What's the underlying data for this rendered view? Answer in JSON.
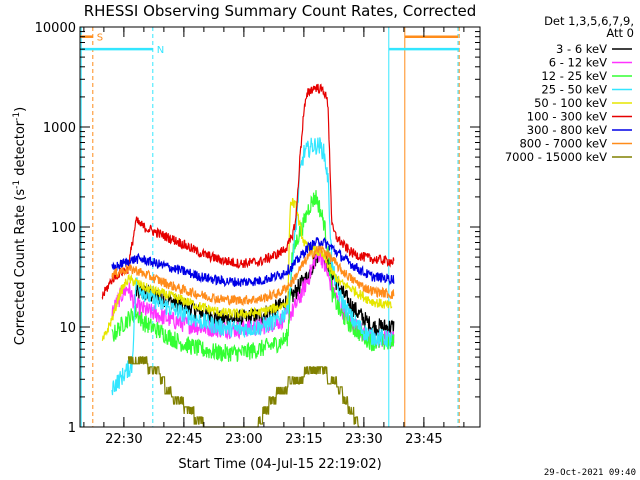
{
  "chart_data": {
    "type": "line",
    "title": "RHESSI Observing Summary Count Rates, Corrected",
    "xlabel": "Start Time (04-Jul-15 22:19:02)",
    "ylabel": "Corrected Count Rate (s",
    "ylabel_sup": "-1",
    "ylabel_tail": " detector",
    "ylabel_tail_sup": "-1",
    "ylabel_close": ")",
    "y_scale": "log",
    "xlim_minutes": [
      0,
      100
    ],
    "ylim": [
      1,
      10000
    ],
    "x_ticks": [
      {
        "label": "22:30",
        "min": 10.97
      },
      {
        "label": "22:45",
        "min": 25.97
      },
      {
        "label": "23:00",
        "min": 40.97
      },
      {
        "label": "23:15",
        "min": 55.97
      },
      {
        "label": "23:30",
        "min": 70.97
      },
      {
        "label": "23:45",
        "min": 85.97
      }
    ],
    "y_ticks": [
      {
        "label": "1",
        "value": 1
      },
      {
        "label": "10",
        "value": 10
      },
      {
        "label": "100",
        "value": 100
      },
      {
        "label": "1000",
        "value": 1000
      },
      {
        "label": "10000",
        "value": 10000
      }
    ],
    "legend_header": [
      "Det 1,3,5,6,7,9,",
      "Att 0"
    ],
    "legend_position": "right",
    "timestamp": "29-Oct-2021 09:40",
    "markers": [
      {
        "label": "S",
        "color": "#ff8c1a",
        "y": 8000
      },
      {
        "label": "N",
        "color": "#33e6ff",
        "y": 6000
      }
    ],
    "series": [
      {
        "name": "3 - 6 keV",
        "color": "#000000",
        "points": [
          [
            14,
            22
          ],
          [
            16,
            22
          ],
          [
            20,
            20
          ],
          [
            25,
            17
          ],
          [
            30,
            14
          ],
          [
            35,
            12
          ],
          [
            40,
            12
          ],
          [
            45,
            13
          ],
          [
            50,
            16
          ],
          [
            53,
            20
          ],
          [
            55,
            26
          ],
          [
            57,
            32
          ],
          [
            59,
            50
          ],
          [
            60,
            60
          ],
          [
            61,
            48
          ],
          [
            63,
            34
          ],
          [
            65,
            24
          ],
          [
            68,
            16
          ],
          [
            71,
            12
          ],
          [
            72,
            11
          ],
          [
            73,
            10
          ],
          [
            78.5,
            10
          ]
        ]
      },
      {
        "name": "6 - 12 keV",
        "color": "#ff33ff",
        "points": [
          [
            8,
            14
          ],
          [
            10,
            20
          ],
          [
            12,
            25
          ],
          [
            14,
            16
          ],
          [
            16,
            15
          ],
          [
            20,
            13
          ],
          [
            25,
            11
          ],
          [
            30,
            10
          ],
          [
            35,
            9.5
          ],
          [
            40,
            9.5
          ],
          [
            45,
            10
          ],
          [
            50,
            11.5
          ],
          [
            53,
            14
          ],
          [
            55,
            20
          ],
          [
            57,
            30
          ],
          [
            59,
            50
          ],
          [
            60,
            55
          ],
          [
            61,
            42
          ],
          [
            63,
            25
          ],
          [
            65,
            16
          ],
          [
            68,
            11
          ],
          [
            71,
            8.5
          ],
          [
            73,
            7.5
          ],
          [
            78.5,
            7.5
          ]
        ]
      },
      {
        "name": "12 - 25 keV",
        "color": "#33ff33",
        "points": [
          [
            8,
            8
          ],
          [
            10,
            10
          ],
          [
            12,
            12
          ],
          [
            14,
            14
          ],
          [
            16,
            11
          ],
          [
            20,
            9
          ],
          [
            25,
            7
          ],
          [
            30,
            6
          ],
          [
            35,
            5.5
          ],
          [
            40,
            5.5
          ],
          [
            45,
            6
          ],
          [
            50,
            7
          ],
          [
            52,
            8
          ],
          [
            53,
            50
          ],
          [
            54,
            70
          ],
          [
            55,
            90
          ],
          [
            56,
            110
          ],
          [
            57,
            150
          ],
          [
            58,
            180
          ],
          [
            59,
            200
          ],
          [
            60,
            150
          ],
          [
            61,
            110
          ],
          [
            62,
            60
          ],
          [
            63,
            22
          ],
          [
            65,
            14
          ],
          [
            68,
            10
          ],
          [
            71,
            8
          ],
          [
            73,
            7
          ],
          [
            78.5,
            7
          ]
        ]
      },
      {
        "name": "25 - 50 keV",
        "color": "#33e6ff",
        "points": [
          [
            8,
            2.5
          ],
          [
            10,
            3
          ],
          [
            12,
            3.8
          ],
          [
            13,
            4
          ],
          [
            14,
            28
          ],
          [
            16,
            22
          ],
          [
            20,
            17
          ],
          [
            25,
            14
          ],
          [
            30,
            11.5
          ],
          [
            35,
            10
          ],
          [
            40,
            9.5
          ],
          [
            45,
            10
          ],
          [
            50,
            12
          ],
          [
            52,
            16
          ],
          [
            53,
            40
          ],
          [
            54,
            100
          ],
          [
            55,
            350
          ],
          [
            56,
            550
          ],
          [
            58,
            650
          ],
          [
            60,
            650
          ],
          [
            61,
            550
          ],
          [
            62,
            300
          ],
          [
            63,
            40
          ],
          [
            65,
            20
          ],
          [
            68,
            12
          ],
          [
            71,
            9
          ],
          [
            73,
            8
          ],
          [
            78,
            7.5
          ]
        ]
      },
      {
        "name": "50 - 100 keV",
        "color": "#e6e600",
        "points": [
          [
            5.5,
            7
          ],
          [
            8,
            12
          ],
          [
            10,
            22
          ],
          [
            12,
            30
          ],
          [
            14,
            28
          ],
          [
            16,
            25
          ],
          [
            20,
            22
          ],
          [
            25,
            19
          ],
          [
            30,
            16
          ],
          [
            35,
            14
          ],
          [
            40,
            13.5
          ],
          [
            45,
            14
          ],
          [
            50,
            16
          ],
          [
            52,
            18
          ],
          [
            52.5,
            160
          ],
          [
            53,
            180
          ],
          [
            54,
            160
          ],
          [
            55,
            100
          ],
          [
            56,
            70
          ],
          [
            57,
            60
          ],
          [
            59,
            58
          ],
          [
            60,
            55
          ],
          [
            61,
            50
          ],
          [
            62,
            42
          ],
          [
            63,
            35
          ],
          [
            65,
            28
          ],
          [
            68,
            24
          ],
          [
            71,
            20
          ],
          [
            73,
            18
          ],
          [
            78,
            16
          ]
        ]
      },
      {
        "name": "100 - 300 keV",
        "color": "#e60000",
        "points": [
          [
            5.5,
            20
          ],
          [
            8,
            30
          ],
          [
            10,
            35
          ],
          [
            12,
            38
          ],
          [
            14,
            115
          ],
          [
            16,
            100
          ],
          [
            20,
            85
          ],
          [
            25,
            70
          ],
          [
            30,
            55
          ],
          [
            35,
            47
          ],
          [
            40,
            43
          ],
          [
            45,
            45
          ],
          [
            50,
            55
          ],
          [
            52,
            65
          ],
          [
            53,
            80
          ],
          [
            54,
            120
          ],
          [
            55,
            500
          ],
          [
            56,
            1500
          ],
          [
            57,
            2200
          ],
          [
            58,
            2400
          ],
          [
            59,
            2500
          ],
          [
            60,
            2400
          ],
          [
            61,
            2300
          ],
          [
            62,
            1700
          ],
          [
            62.5,
            400
          ],
          [
            63,
            100
          ],
          [
            64,
            80
          ],
          [
            66,
            65
          ],
          [
            68,
            55
          ],
          [
            71,
            50
          ],
          [
            73,
            48
          ],
          [
            78.5,
            45
          ]
        ]
      },
      {
        "name": "300 - 800 keV",
        "color": "#0000e6",
        "points": [
          [
            8,
            38
          ],
          [
            10,
            42
          ],
          [
            12,
            45
          ],
          [
            14,
            48
          ],
          [
            16,
            47
          ],
          [
            20,
            42
          ],
          [
            25,
            37
          ],
          [
            30,
            32
          ],
          [
            35,
            29
          ],
          [
            40,
            28
          ],
          [
            45,
            29
          ],
          [
            50,
            33
          ],
          [
            53,
            40
          ],
          [
            55,
            50
          ],
          [
            57,
            62
          ],
          [
            59,
            70
          ],
          [
            60,
            72
          ],
          [
            61,
            70
          ],
          [
            63,
            62
          ],
          [
            65,
            52
          ],
          [
            68,
            42
          ],
          [
            71,
            35
          ],
          [
            73,
            32
          ],
          [
            78.5,
            30
          ]
        ]
      },
      {
        "name": "800 - 7000 keV",
        "color": "#ff8c1a",
        "points": [
          [
            8,
            33
          ],
          [
            10,
            36
          ],
          [
            12,
            38
          ],
          [
            14,
            37
          ],
          [
            16,
            34
          ],
          [
            20,
            29
          ],
          [
            25,
            24
          ],
          [
            30,
            21
          ],
          [
            35,
            19
          ],
          [
            40,
            18.5
          ],
          [
            45,
            19
          ],
          [
            50,
            22
          ],
          [
            53,
            28
          ],
          [
            55,
            38
          ],
          [
            57,
            50
          ],
          [
            59,
            58
          ],
          [
            60,
            60
          ],
          [
            61,
            58
          ],
          [
            63,
            48
          ],
          [
            65,
            38
          ],
          [
            68,
            30
          ],
          [
            71,
            25
          ],
          [
            73,
            23
          ],
          [
            78.5,
            21
          ]
        ]
      },
      {
        "name": "7000 - 15000 keV",
        "color": "#808000",
        "points": [
          [
            12,
            4.5
          ],
          [
            14,
            5
          ],
          [
            17,
            4.5
          ],
          [
            20,
            3.6
          ],
          [
            22,
            2.4
          ],
          [
            25,
            1.9
          ],
          [
            28,
            1.5
          ],
          [
            30,
            1.2
          ],
          [
            32,
            1
          ],
          [
            44,
            1
          ],
          [
            46,
            1.5
          ],
          [
            48,
            2
          ],
          [
            50,
            2.5
          ],
          [
            53,
            3
          ],
          [
            55,
            3.5
          ],
          [
            60,
            3.8
          ],
          [
            63,
            3.4
          ],
          [
            65,
            2.5
          ],
          [
            67,
            1.8
          ],
          [
            69,
            1.3
          ],
          [
            70,
            1
          ]
        ]
      }
    ]
  }
}
